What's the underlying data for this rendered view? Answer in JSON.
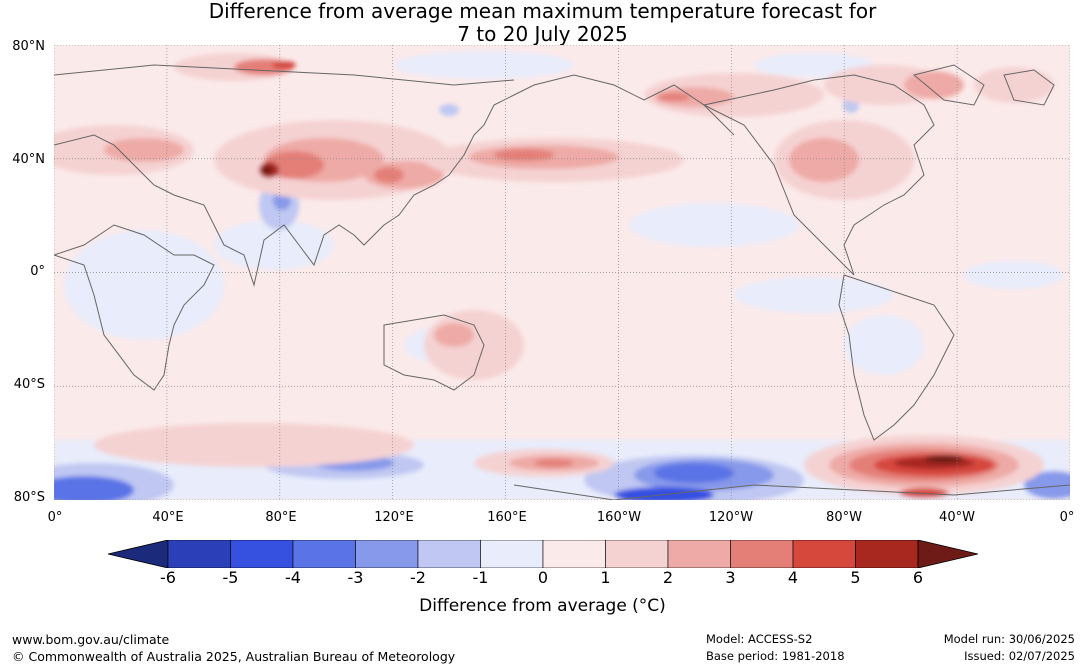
{
  "title": {
    "line1": "Difference from average mean maximum temperature forecast for",
    "line2": "7 to 20 July 2025"
  },
  "map": {
    "lat_labels": [
      "80°N",
      "40°N",
      "0°",
      "40°S",
      "80°S"
    ],
    "lon_labels": [
      "0°",
      "40°E",
      "80°E",
      "120°E",
      "160°E",
      "160°W",
      "120°W",
      "80°W",
      "40°W",
      "0°"
    ]
  },
  "colorbar": {
    "ticks": [
      "-6",
      "-5",
      "-4",
      "-3",
      "-2",
      "-1",
      "0",
      "1",
      "2",
      "3",
      "4",
      "5",
      "6"
    ],
    "colors": [
      "#1b2a7a",
      "#2b40b8",
      "#3650e0",
      "#5a73e6",
      "#8799ea",
      "#bfc7f2",
      "#e8ecfb",
      "#fbeaea",
      "#f5d2d2",
      "#eeaaa6",
      "#e47f78",
      "#d6473c",
      "#a82820",
      "#6e1a16"
    ],
    "label": "Difference from average (°C)"
  },
  "footer": {
    "url": "www.bom.gov.au/climate",
    "copyright": "© Commonwealth of Australia 2025, Australian Bureau of Meteorology",
    "model": "Model: ACCESS-S2",
    "base_period": "Base period: 1981-2018",
    "model_run": "Model run: 30/06/2025",
    "issued": "Issued: 02/07/2025"
  }
}
